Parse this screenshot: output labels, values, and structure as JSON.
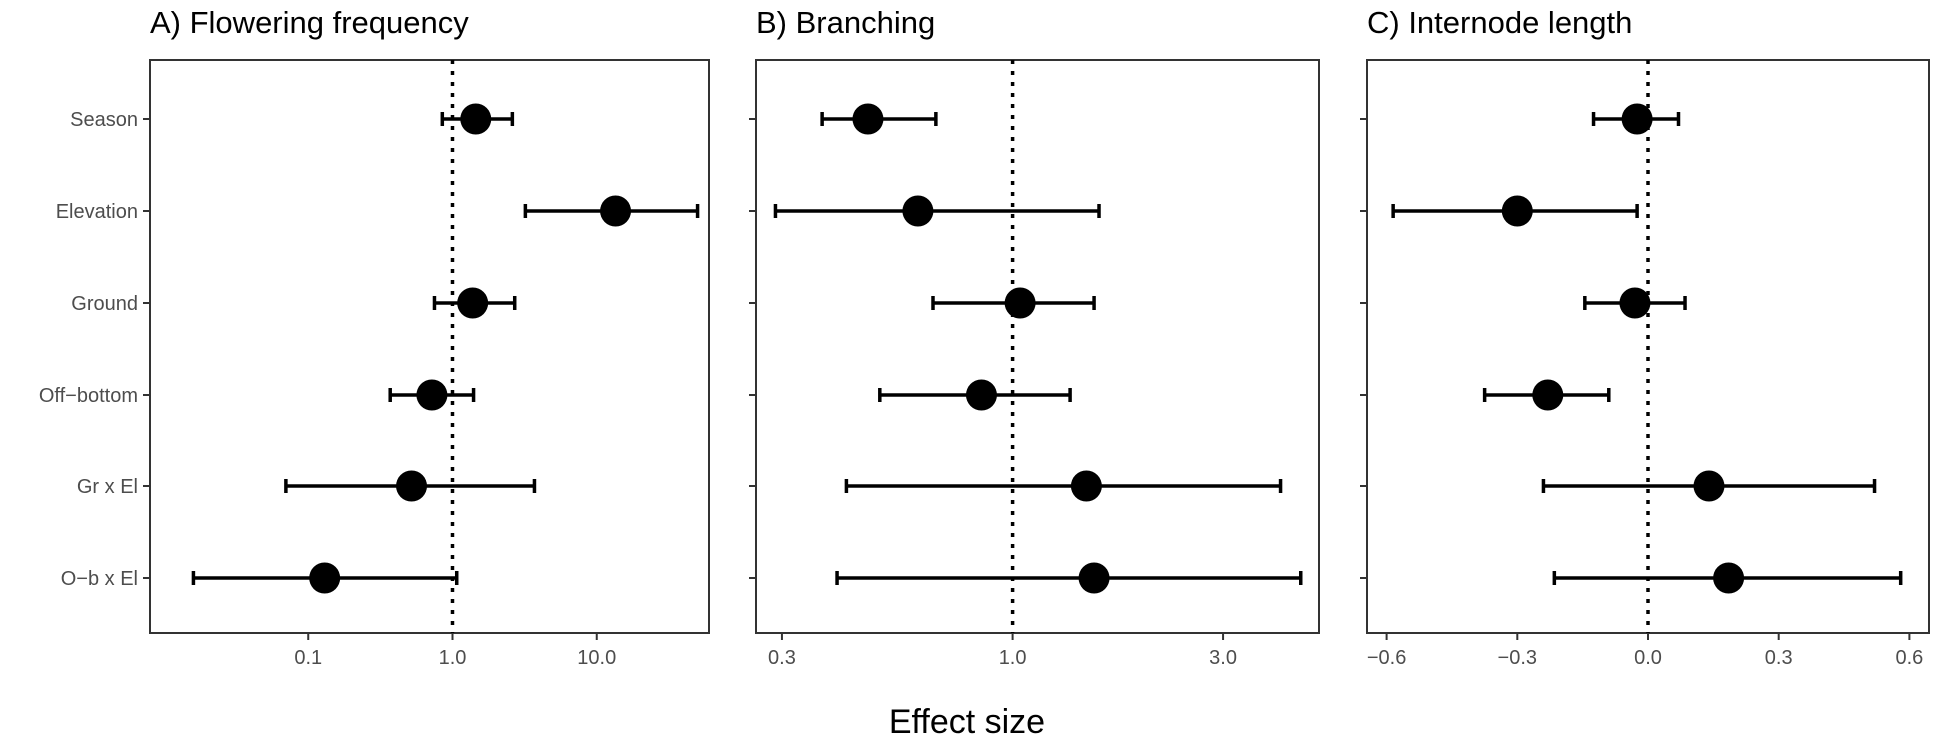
{
  "chart_data": {
    "type": "scatter",
    "xlabel": "Effect size",
    "colors": {
      "points": "#000000",
      "frame": "#333333",
      "tick_label": "#4d4d4d"
    },
    "terms": [
      "Season",
      "Elevation",
      "Ground",
      "Off−bottom",
      "Gr x El",
      "O−b x El"
    ],
    "panels": [
      {
        "title": "A) Flowering frequency",
        "scale": "log",
        "xlim": [
          0.008,
          60
        ],
        "reference": 1.0,
        "ticks": [
          0.1,
          1.0,
          10.0
        ],
        "tick_labels": [
          "0.1",
          "1.0",
          "10.0"
        ],
        "estimates": [
          1.45,
          13.5,
          1.38,
          0.72,
          0.52,
          0.13
        ],
        "lower": [
          0.85,
          3.2,
          0.75,
          0.37,
          0.07,
          0.016
        ],
        "upper": [
          2.6,
          50.0,
          2.7,
          1.4,
          3.7,
          1.07
        ]
      },
      {
        "title": "B) Branching",
        "scale": "log",
        "xlim": [
          0.262,
          4.95
        ],
        "reference": 1.0,
        "ticks": [
          0.3,
          1.0,
          3.0
        ],
        "tick_labels": [
          "0.3",
          "1.0",
          "3.0"
        ],
        "estimates": [
          0.47,
          0.61,
          1.04,
          0.85,
          1.47,
          1.53
        ],
        "lower": [
          0.37,
          0.29,
          0.66,
          0.5,
          0.42,
          0.4
        ],
        "upper": [
          0.67,
          1.57,
          1.53,
          1.35,
          4.05,
          4.5
        ]
      },
      {
        "title": "C) Internode length",
        "scale": "linear",
        "xlim": [
          -0.645,
          0.645
        ],
        "reference": 0.0,
        "ticks": [
          -0.6,
          -0.3,
          0.0,
          0.3,
          0.6
        ],
        "tick_labels": [
          "−0.6",
          "−0.3",
          "0.0",
          "0.3",
          "0.6"
        ],
        "estimates": [
          -0.025,
          -0.3,
          -0.03,
          -0.23,
          0.14,
          0.185
        ],
        "lower": [
          -0.125,
          -0.585,
          -0.145,
          -0.375,
          -0.24,
          -0.215
        ],
        "upper": [
          0.07,
          -0.025,
          0.085,
          -0.09,
          0.52,
          0.58
        ]
      }
    ]
  }
}
